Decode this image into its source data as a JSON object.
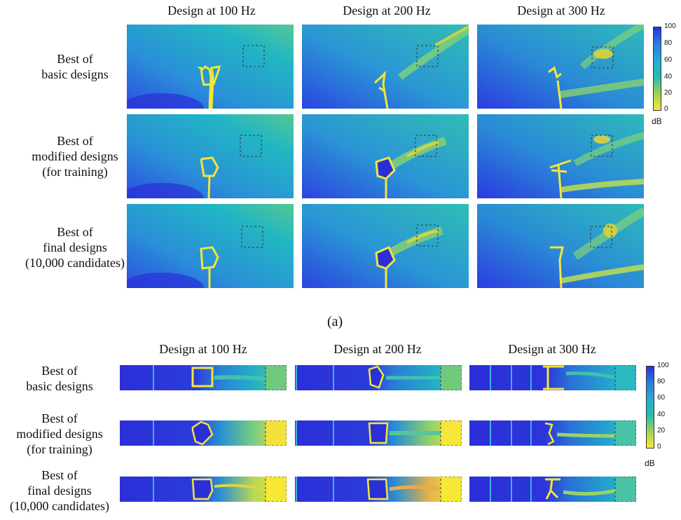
{
  "figure": {
    "caption_a": "(a)",
    "colors": {
      "low": "#2b2fd8",
      "mid": "#20b7bd",
      "mid_high": "#63c988",
      "high": "#f7e836",
      "structure": "#f3e53a"
    },
    "colorbar": {
      "ticks": [
        "100",
        "80",
        "60",
        "40",
        "20",
        "0"
      ],
      "unit": "dB"
    }
  },
  "grid_a": {
    "col_titles": [
      "Design at 100 Hz",
      "Design at 200 Hz",
      "Design at 300 Hz"
    ],
    "row_labels": [
      [
        "Best of",
        "basic designs"
      ],
      [
        "Best of",
        "modified designs",
        "(for training)"
      ],
      [
        "Best of",
        "final designs",
        "(10,000 candidates)"
      ]
    ]
  },
  "grid_b": {
    "col_titles": [
      "Design at 100 Hz",
      "Design at 200 Hz",
      "Design at 300 Hz"
    ],
    "row_labels": [
      [
        "Best of",
        "basic designs"
      ],
      [
        "Best of",
        "modified designs",
        "(for training)"
      ],
      [
        "Best of",
        "final designs",
        "(10,000 candidates)"
      ]
    ]
  }
}
